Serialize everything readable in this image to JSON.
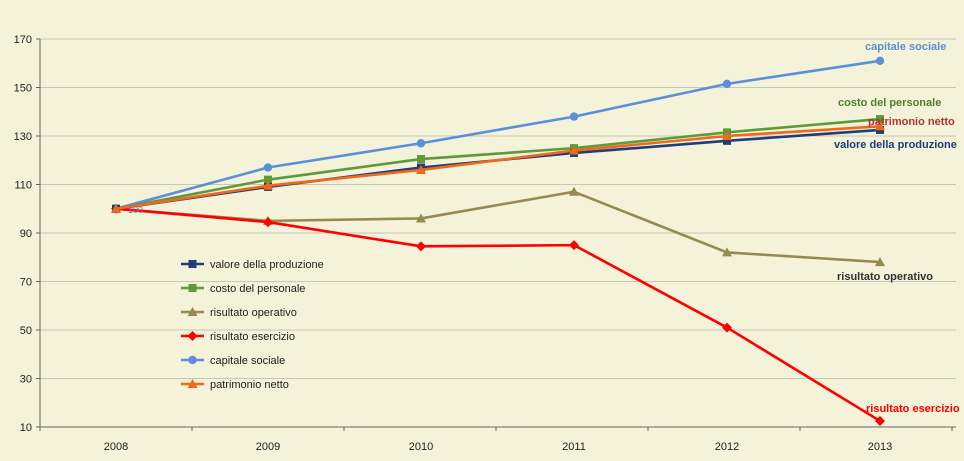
{
  "chart_data": {
    "type": "line",
    "title": "",
    "xlabel": "",
    "ylabel": "",
    "categories": [
      "2008",
      "2009",
      "2010",
      "2011",
      "2012",
      "2013"
    ],
    "ylim": [
      10,
      170
    ],
    "yticks": [
      "10",
      "30",
      "50",
      "70",
      "90",
      "110",
      "130",
      "150",
      "170"
    ],
    "grid": "horizontal",
    "legend_position": "left-center",
    "data_labels": [
      "100"
    ],
    "series": [
      {
        "name": "valore della produzione",
        "color": "#1f3d7a",
        "marker": "square",
        "values": [
          100,
          109,
          117,
          123,
          128,
          132.5
        ]
      },
      {
        "name": "costo del personale",
        "color": "#5e9a3a",
        "marker": "square",
        "values": [
          100,
          112,
          120.5,
          125,
          131.5,
          137
        ]
      },
      {
        "name": "risultato operativo",
        "color": "#948a54",
        "marker": "triangle",
        "values": [
          100,
          95,
          96,
          107,
          82,
          78
        ]
      },
      {
        "name": "risultato esercizio",
        "color": "#ff0000",
        "marker": "diamond",
        "values": [
          100,
          94.5,
          84.5,
          85,
          51,
          12.5
        ]
      },
      {
        "name": "capitale sociale",
        "color": "#5b8fd9",
        "marker": "circle",
        "values": [
          100,
          117,
          127,
          138,
          151.5,
          161
        ]
      },
      {
        "name": "patrimonio netto",
        "color": "#ee6a1a",
        "marker": "triangle",
        "values": [
          100,
          109.5,
          116,
          124,
          130,
          134
        ]
      }
    ],
    "end_labels": [
      {
        "text": "capitale sociale",
        "color": "#5b8fd9"
      },
      {
        "text": "costo del personale",
        "color": "#4f7f2f"
      },
      {
        "text": "patrimonio netto",
        "color": "#b03535"
      },
      {
        "text": "valore della produzione",
        "color": "#1f3d7a"
      },
      {
        "text": "risultato operativo",
        "color": "#333333"
      },
      {
        "text": "risultato esercizio",
        "color": "#ff0000"
      }
    ]
  }
}
